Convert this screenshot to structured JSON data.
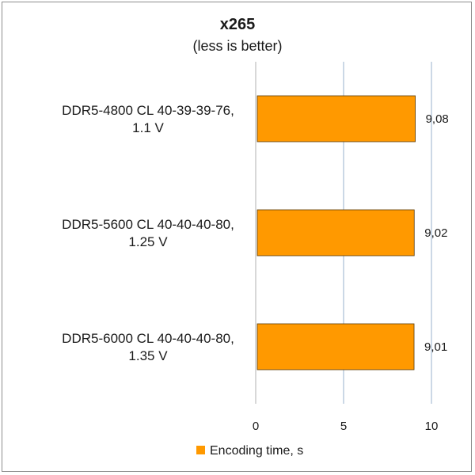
{
  "chart_data": {
    "type": "bar",
    "orientation": "horizontal",
    "title": "x265",
    "subtitle": "(less is better)",
    "categories": [
      [
        "DDR5-4800 CL 40-39-39-76,",
        "1.1 V"
      ],
      [
        "DDR5-5600 CL 40-40-40-80,",
        "1.25 V"
      ],
      [
        "DDR5-6000 CL 40-40-40-80,",
        "1.35 V"
      ]
    ],
    "series": [
      {
        "name": "Encoding time, s",
        "values": [
          9.08,
          9.02,
          9.01
        ],
        "value_labels": [
          "9,08",
          "9,02",
          "9,01"
        ],
        "color": "#ff9900"
      }
    ],
    "xlim": [
      0,
      10
    ],
    "xticks": [
      0,
      5,
      10
    ],
    "xtick_labels": [
      "0",
      "5",
      "10"
    ],
    "grid": true,
    "legend_position": "bottom"
  }
}
